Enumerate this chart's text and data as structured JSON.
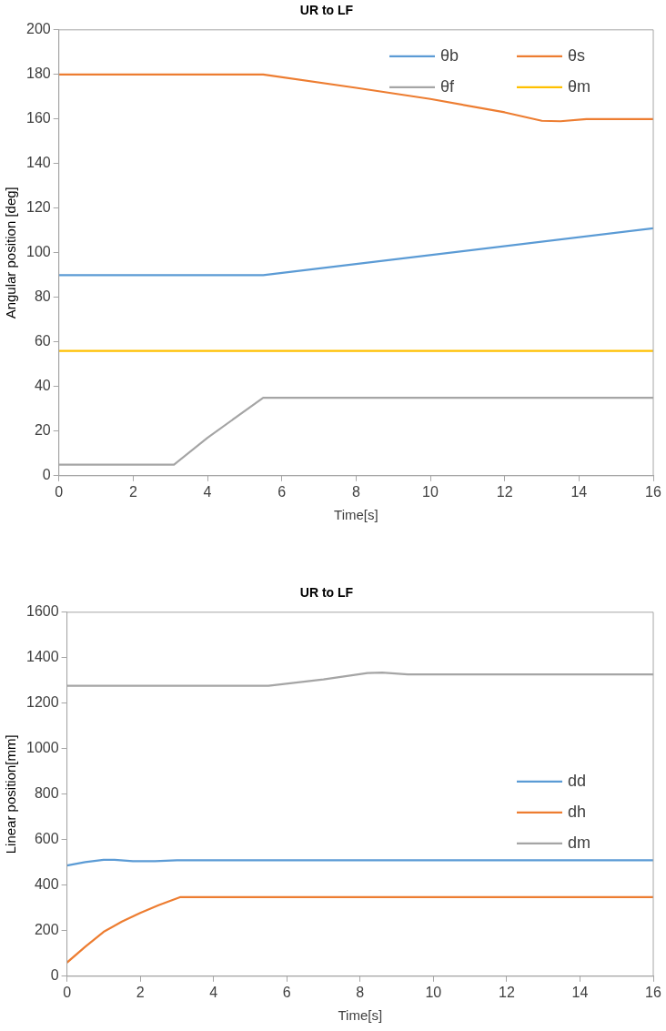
{
  "chart_data": [
    {
      "type": "line",
      "title": "UR to LF",
      "xlabel": "Time[s]",
      "ylabel": "Angular position [deg]",
      "xlim": [
        0,
        16
      ],
      "xticks": [
        0,
        2,
        4,
        6,
        8,
        10,
        12,
        14,
        16
      ],
      "ylim": [
        0,
        200
      ],
      "yticks": [
        0,
        20,
        40,
        60,
        80,
        100,
        120,
        140,
        160,
        180,
        200
      ],
      "grid": false,
      "legend": "top right",
      "marker": "none",
      "line_style": "solid",
      "series": [
        {
          "name": "θb",
          "color": "#5b9bd5",
          "x": [
            0,
            5.5,
            16
          ],
          "values": [
            90,
            90,
            111
          ]
        },
        {
          "name": "θs",
          "color": "#ed7d31",
          "x": [
            0,
            5.5,
            8,
            10,
            12,
            13,
            13.5,
            14.2,
            16
          ],
          "values": [
            180,
            180,
            174,
            169,
            163,
            159.2,
            159,
            160,
            160
          ]
        },
        {
          "name": "θf",
          "color": "#a5a5a5",
          "x": [
            0,
            3.1,
            4,
            5.5,
            16
          ],
          "values": [
            5,
            5,
            17,
            35,
            35
          ]
        },
        {
          "name": "θm",
          "color": "#ffc000",
          "x": [
            0,
            16
          ],
          "values": [
            56,
            56
          ]
        }
      ]
    },
    {
      "type": "line",
      "title": "UR to LF",
      "xlabel": "Time[s]",
      "ylabel": "Linear position[mm]",
      "xlim": [
        0,
        16
      ],
      "xticks": [
        0,
        2,
        4,
        6,
        8,
        10,
        12,
        14,
        16
      ],
      "ylim": [
        0,
        1600
      ],
      "yticks": [
        0,
        200,
        400,
        600,
        800,
        1000,
        1200,
        1400,
        1600
      ],
      "grid": false,
      "legend": "right",
      "marker": "none",
      "line_style": "solid",
      "series": [
        {
          "name": "dd",
          "color": "#5b9bd5",
          "x": [
            0,
            0.5,
            1,
            1.3,
            1.8,
            2.4,
            3,
            16
          ],
          "values": [
            487,
            502,
            512,
            512,
            506,
            506,
            510,
            510
          ]
        },
        {
          "name": "dh",
          "color": "#ed7d31",
          "x": [
            0,
            0.5,
            1,
            1.5,
            2,
            2.5,
            3.1,
            16
          ],
          "values": [
            60,
            130,
            195,
            240,
            278,
            312,
            348,
            348
          ]
        },
        {
          "name": "dm",
          "color": "#a5a5a5",
          "x": [
            0,
            5.5,
            7,
            8.2,
            8.6,
            9.3,
            16
          ],
          "values": [
            1277,
            1277,
            1305,
            1333,
            1335,
            1327,
            1327
          ]
        }
      ]
    }
  ]
}
